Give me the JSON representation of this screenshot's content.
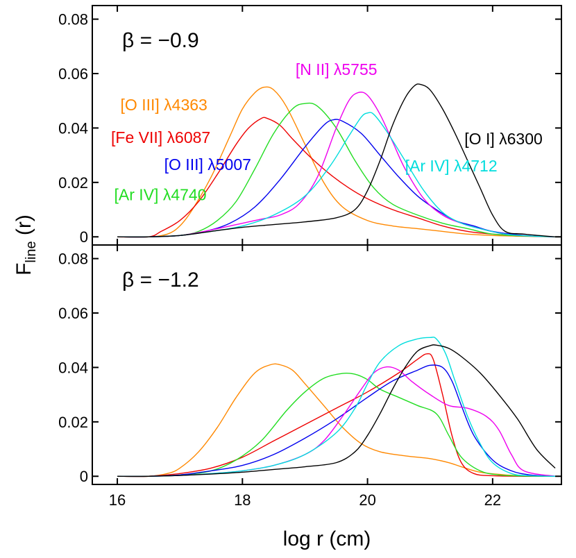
{
  "chart_data": {
    "type": "line",
    "xlabel": "log r  (cm)",
    "ylabel_main": "F",
    "ylabel_sub": "line",
    "ylabel_suffix": " (r)",
    "xlim": [
      15.6,
      23.1
    ],
    "ylim": [
      -0.003,
      0.085
    ],
    "x_ticks": [
      16,
      18,
      20,
      22
    ],
    "x_tick_labels": [
      "16",
      "18",
      "20",
      "22"
    ],
    "y_ticks": [
      0,
      0.02,
      0.04,
      0.06,
      0.08
    ],
    "y_tick_labels": [
      "0",
      "0.02",
      "0.04",
      "0.06",
      "0.08"
    ],
    "panels": [
      {
        "beta_label": "β  = −0.9",
        "series": [
          {
            "name": "[O III] λ4363",
            "color": "#ff8800",
            "x": [
              16.0,
              16.5,
              16.8,
              17.0,
              17.2,
              17.5,
              17.8,
              18.0,
              18.2,
              18.35,
              18.5,
              18.7,
              19.0,
              19.3,
              19.6,
              20.0,
              20.4,
              20.8,
              21.2,
              21.6,
              22.0,
              22.5,
              23.0
            ],
            "y": [
              0,
              0,
              0.001,
              0.004,
              0.01,
              0.022,
              0.037,
              0.047,
              0.053,
              0.055,
              0.054,
              0.048,
              0.034,
              0.02,
              0.011,
              0.006,
              0.004,
              0.003,
              0.002,
              0.001,
              0.0005,
              0.0002,
              0
            ]
          },
          {
            "name": "[Fe VII] λ6087",
            "color": "#ee0000",
            "x": [
              16.0,
              16.5,
              16.7,
              17.0,
              17.3,
              17.6,
              17.9,
              18.1,
              18.3,
              18.4,
              18.6,
              18.8,
              19.1,
              19.4,
              19.7,
              20.0,
              20.4,
              20.8,
              21.2,
              21.6,
              22.0,
              22.5,
              23.0
            ],
            "y": [
              0,
              0,
              0.002,
              0.006,
              0.013,
              0.023,
              0.034,
              0.04,
              0.0435,
              0.0435,
              0.041,
              0.036,
              0.029,
              0.023,
              0.018,
              0.014,
              0.01,
              0.007,
              0.004,
              0.002,
              0.001,
              0.0003,
              0
            ]
          },
          {
            "name": "[Ar IV] λ4740",
            "color": "#22dd22",
            "x": [
              16.0,
              16.5,
              17.0,
              17.3,
              17.6,
              17.9,
              18.2,
              18.5,
              18.8,
              19.0,
              19.2,
              19.5,
              19.8,
              20.1,
              20.4,
              20.8,
              21.2,
              21.6,
              22.0,
              22.5,
              23.0
            ],
            "y": [
              0,
              0,
              0.0005,
              0.002,
              0.006,
              0.013,
              0.025,
              0.038,
              0.047,
              0.049,
              0.048,
              0.04,
              0.028,
              0.018,
              0.012,
              0.008,
              0.005,
              0.003,
              0.001,
              0.0003,
              0
            ]
          },
          {
            "name": "[O III] λ5007",
            "color": "#0000ee",
            "x": [
              16.0,
              16.5,
              17.0,
              17.4,
              17.8,
              18.2,
              18.6,
              19.0,
              19.3,
              19.45,
              19.6,
              19.9,
              20.2,
              20.5,
              20.8,
              21.1,
              21.4,
              21.7,
              22.0,
              22.5,
              23.0
            ],
            "y": [
              0,
              0,
              0.0005,
              0.002,
              0.005,
              0.011,
              0.021,
              0.033,
              0.041,
              0.043,
              0.0425,
              0.038,
              0.03,
              0.022,
              0.015,
              0.01,
              0.006,
              0.004,
              0.002,
              0.0005,
              0
            ]
          },
          {
            "name": "[N II] λ5755",
            "color": "#ee00ee",
            "x": [
              16.0,
              16.5,
              17.0,
              17.5,
              18.0,
              18.3,
              18.6,
              18.9,
              19.2,
              19.5,
              19.7,
              19.85,
              20.0,
              20.2,
              20.4,
              20.6,
              20.9,
              21.2,
              21.5,
              21.8,
              22.2,
              22.6,
              23.0
            ],
            "y": [
              0,
              0,
              0.0005,
              0.0025,
              0.005,
              0.0065,
              0.008,
              0.012,
              0.022,
              0.04,
              0.05,
              0.053,
              0.052,
              0.045,
              0.035,
              0.025,
              0.014,
              0.008,
              0.005,
              0.003,
              0.001,
              0.0003,
              0
            ]
          },
          {
            "name": "[Ar IV] λ4712",
            "color": "#00dddd",
            "x": [
              16.0,
              16.5,
              17.0,
              17.5,
              18.0,
              18.5,
              19.0,
              19.4,
              19.7,
              19.9,
              20.0,
              20.1,
              20.3,
              20.6,
              20.9,
              21.2,
              21.5,
              21.8,
              22.2,
              22.6,
              23.0
            ],
            "y": [
              0,
              0,
              0.0005,
              0.002,
              0.004,
              0.008,
              0.015,
              0.026,
              0.037,
              0.044,
              0.0455,
              0.045,
              0.039,
              0.028,
              0.017,
              0.009,
              0.005,
              0.003,
              0.001,
              0.0003,
              0
            ]
          },
          {
            "name": "[O I] λ6300",
            "color": "#000000",
            "x": [
              16.0,
              16.5,
              17.0,
              17.5,
              18.0,
              18.5,
              19.0,
              19.5,
              19.8,
              20.0,
              20.2,
              20.4,
              20.6,
              20.75,
              20.85,
              21.0,
              21.2,
              21.4,
              21.6,
              21.8,
              22.0,
              22.2,
              22.5,
              23.0
            ],
            "y": [
              0,
              0,
              0.0005,
              0.002,
              0.0035,
              0.0045,
              0.0055,
              0.007,
              0.01,
              0.017,
              0.028,
              0.041,
              0.051,
              0.0555,
              0.056,
              0.054,
              0.047,
              0.038,
              0.028,
              0.018,
              0.008,
              0.002,
              0.001,
              0
            ]
          }
        ],
        "labels": [
          {
            "text": "[O III] λ4363",
            "color": "#ff8800",
            "at": [
              16.05,
              0.0465
            ]
          },
          {
            "text": "[Fe VII] λ6087",
            "color": "#ee0000",
            "at": [
              15.9,
              0.0345
            ]
          },
          {
            "text": "[O III] λ5007",
            "color": "#0000ee",
            "at": [
              16.75,
              0.0245
            ]
          },
          {
            "text": "[Ar IV] λ4740",
            "color": "#22dd22",
            "at": [
              15.95,
              0.0135
            ]
          },
          {
            "text": "[N II] λ5755",
            "color": "#ee00ee",
            "at": [
              18.85,
              0.0595
            ]
          },
          {
            "text": "[O I] λ6300",
            "color": "#000000",
            "at": [
              21.55,
              0.034
            ]
          },
          {
            "text": "[Ar IV] λ4712",
            "color": "#00dddd",
            "at": [
              20.6,
              0.024
            ]
          }
        ]
      },
      {
        "beta_label": "β  = −1.2",
        "series": [
          {
            "name": "[O III] λ4363",
            "color": "#ff8800",
            "x": [
              16.0,
              16.5,
              16.8,
              17.0,
              17.3,
              17.6,
              17.9,
              18.2,
              18.45,
              18.6,
              18.8,
              19.0,
              19.3,
              19.6,
              19.9,
              20.2,
              20.6,
              21.0,
              21.3,
              21.5,
              21.8,
              22.2,
              22.6,
              23.0
            ],
            "y": [
              0,
              0,
              0.001,
              0.003,
              0.009,
              0.018,
              0.029,
              0.038,
              0.041,
              0.041,
              0.039,
              0.034,
              0.026,
              0.018,
              0.012,
              0.009,
              0.0075,
              0.0065,
              0.005,
              0.0035,
              0.0015,
              0.0005,
              0.0001,
              0
            ]
          },
          {
            "name": "[Fe VII] λ6087",
            "color": "#ee0000",
            "x": [
              16.0,
              16.5,
              17.0,
              17.5,
              18.0,
              18.5,
              19.0,
              19.5,
              20.0,
              20.5,
              20.8,
              20.95,
              21.05,
              21.2,
              21.35,
              21.5,
              21.7,
              22.0,
              22.5,
              23.0
            ],
            "y": [
              0,
              0,
              0.001,
              0.003,
              0.007,
              0.013,
              0.019,
              0.025,
              0.031,
              0.038,
              0.043,
              0.045,
              0.043,
              0.03,
              0.015,
              0.005,
              0.001,
              0.0002,
              0,
              0
            ]
          },
          {
            "name": "[Ar IV] λ4740",
            "color": "#22dd22",
            "x": [
              16.0,
              16.5,
              17.0,
              17.5,
              17.9,
              18.3,
              18.7,
              19.0,
              19.3,
              19.6,
              19.8,
              20.0,
              20.2,
              20.5,
              20.8,
              21.1,
              21.3,
              21.5,
              21.8,
              22.1,
              22.5,
              23.0
            ],
            "y": [
              0,
              0,
              0.0005,
              0.002,
              0.006,
              0.013,
              0.024,
              0.031,
              0.036,
              0.0378,
              0.0375,
              0.0355,
              0.032,
              0.029,
              0.026,
              0.023,
              0.015,
              0.007,
              0.002,
              0.0005,
              0.0001,
              0
            ]
          },
          {
            "name": "[O III] λ5007",
            "color": "#0000ee",
            "x": [
              16.0,
              16.5,
              17.0,
              17.5,
              18.0,
              18.5,
              19.0,
              19.5,
              20.0,
              20.4,
              20.8,
              21.0,
              21.2,
              21.35,
              21.5,
              21.7,
              22.0,
              22.3,
              22.6,
              23.0
            ],
            "y": [
              0,
              0,
              0.0005,
              0.002,
              0.004,
              0.008,
              0.014,
              0.021,
              0.029,
              0.035,
              0.039,
              0.0408,
              0.04,
              0.035,
              0.026,
              0.015,
              0.006,
              0.002,
              0.0005,
              0
            ]
          },
          {
            "name": "[N II] λ5755",
            "color": "#ee00ee",
            "x": [
              16.0,
              16.5,
              17.0,
              17.5,
              18.0,
              18.5,
              19.0,
              19.3,
              19.6,
              19.9,
              20.1,
              20.3,
              20.5,
              20.7,
              21.0,
              21.3,
              21.6,
              21.9,
              22.1,
              22.3,
              22.5,
              23.0
            ],
            "y": [
              0,
              0,
              0.0003,
              0.001,
              0.002,
              0.004,
              0.008,
              0.013,
              0.022,
              0.032,
              0.038,
              0.0402,
              0.039,
              0.035,
              0.03,
              0.026,
              0.025,
              0.022,
              0.017,
              0.008,
              0.002,
              0
            ]
          },
          {
            "name": "[Ar IV] λ4712",
            "color": "#00dddd",
            "x": [
              16.0,
              16.5,
              17.0,
              17.5,
              18.0,
              18.5,
              19.0,
              19.5,
              19.8,
              20.0,
              20.2,
              20.5,
              20.8,
              21.0,
              21.1,
              21.25,
              21.4,
              21.6,
              21.8,
              22.0,
              22.3,
              22.6,
              23.0
            ],
            "y": [
              0,
              0,
              0.0003,
              0.001,
              0.002,
              0.004,
              0.008,
              0.016,
              0.025,
              0.034,
              0.042,
              0.048,
              0.0505,
              0.051,
              0.0505,
              0.045,
              0.035,
              0.022,
              0.012,
              0.005,
              0.001,
              0.0002,
              0
            ]
          },
          {
            "name": "[O I] λ6300",
            "color": "#000000",
            "x": [
              16.0,
              16.5,
              17.0,
              17.5,
              18.0,
              18.5,
              19.0,
              19.5,
              19.8,
              20.0,
              20.2,
              20.4,
              20.6,
              20.8,
              21.0,
              21.1,
              21.3,
              21.5,
              21.8,
              22.1,
              22.4,
              22.7,
              23.0
            ],
            "y": [
              0,
              0,
              0.0003,
              0.0008,
              0.0015,
              0.0025,
              0.0035,
              0.005,
              0.009,
              0.015,
              0.023,
              0.032,
              0.04,
              0.046,
              0.048,
              0.0482,
              0.047,
              0.044,
              0.038,
              0.03,
              0.021,
              0.01,
              0.003
            ]
          }
        ],
        "labels": []
      }
    ]
  }
}
